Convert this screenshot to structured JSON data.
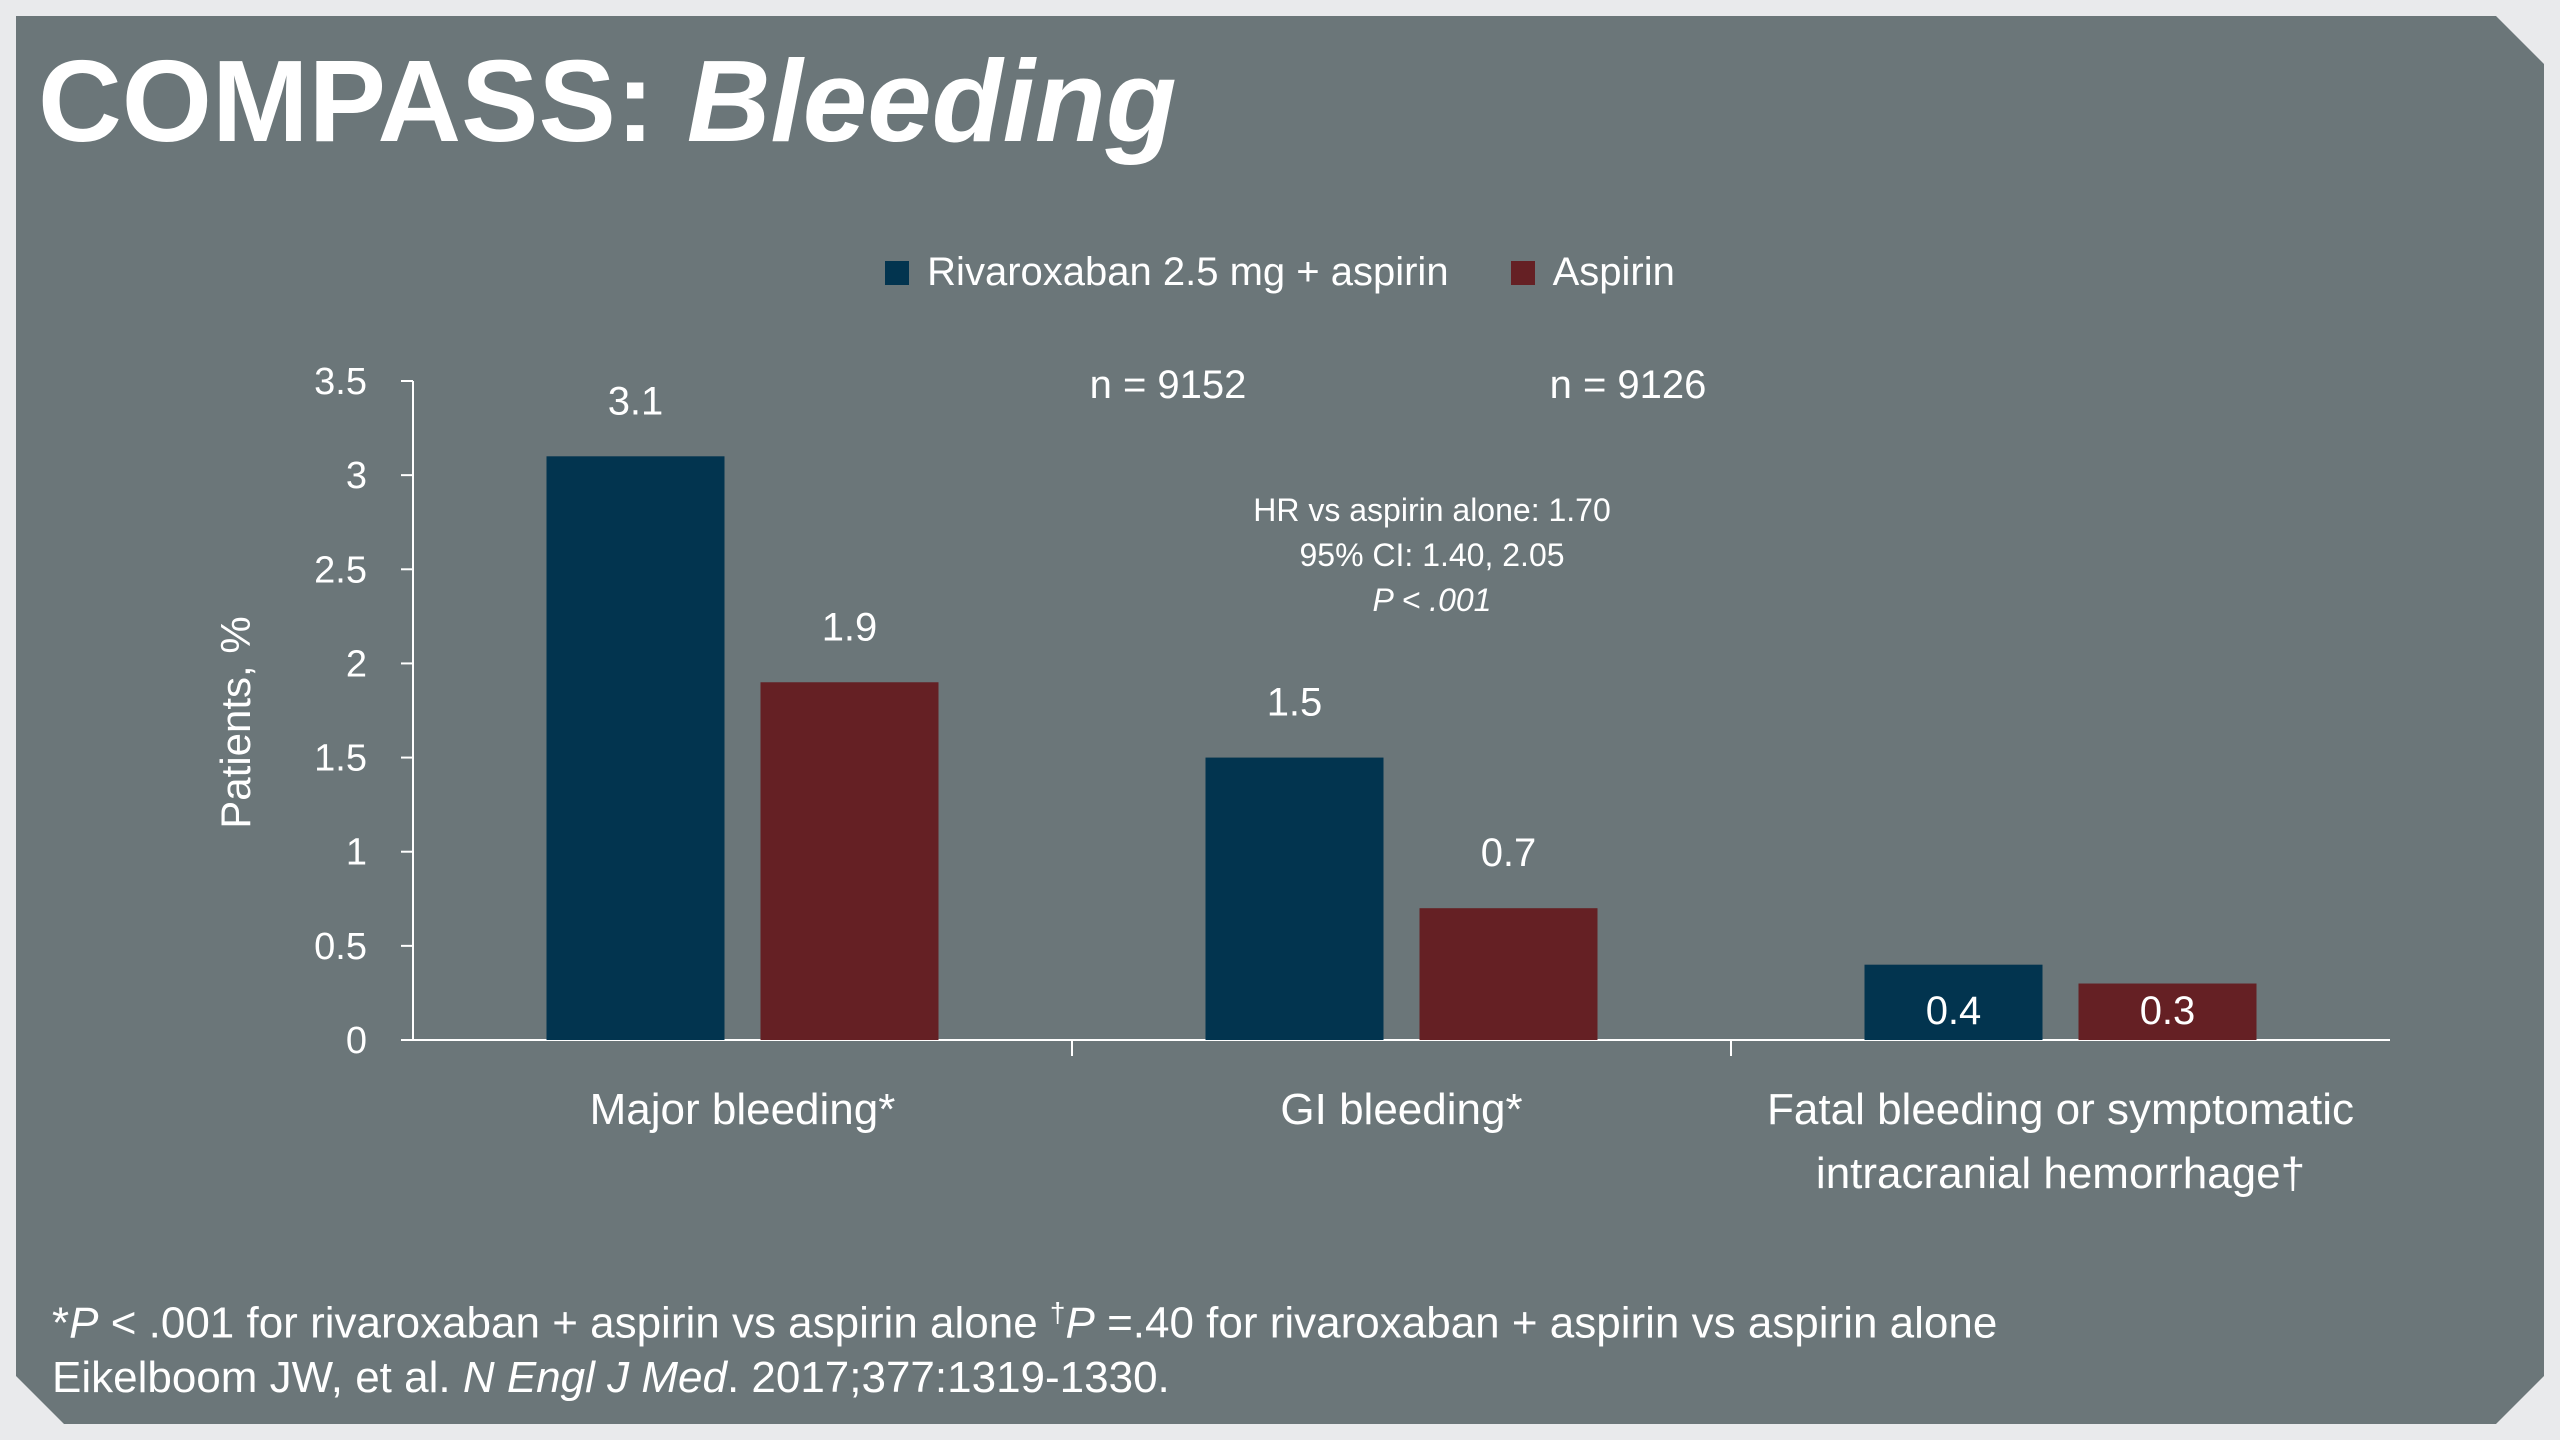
{
  "title": {
    "main": "COMPASS:",
    "italic": "Bleeding"
  },
  "colors": {
    "rivaroxaban": "#02344f",
    "aspirin": "#652024",
    "background": "#6b7679",
    "text": "#ffffff"
  },
  "legend": [
    {
      "label": "Rivaroxaban 2.5 mg + aspirin",
      "color": "#02344f"
    },
    {
      "label": "Aspirin",
      "color": "#652024"
    }
  ],
  "n_labels": [
    "n = 9152",
    "n = 9126"
  ],
  "annotation": [
    "HR vs aspirin alone: 1.70",
    "95% CI: 1.40, 2.05",
    "P < .001"
  ],
  "chart_data": {
    "type": "bar",
    "categories": [
      [
        "Major bleeding*"
      ],
      [
        "GI bleeding*"
      ],
      [
        "Fatal bleeding or symptomatic",
        "intracranial hemorrhage†"
      ]
    ],
    "series": [
      {
        "name": "Rivaroxaban 2.5 mg + aspirin",
        "values": [
          3.1,
          1.5,
          0.4
        ],
        "labels": [
          "3.1",
          "1.5",
          "0.4"
        ]
      },
      {
        "name": "Aspirin",
        "values": [
          1.9,
          0.7,
          0.3
        ],
        "labels": [
          "1.9",
          "0.7",
          "0.3"
        ]
      }
    ],
    "ylabel": "Patients, %",
    "ylim": [
      0,
      3.5
    ],
    "yticks": [
      "0",
      "0.5",
      "1",
      "1.5",
      "2",
      "2.5",
      "3",
      "3.5"
    ],
    "grid": false,
    "legend_position": "top"
  },
  "footnote": {
    "star": "*",
    "p1": "P",
    "text1": " < .001 for rivaroxaban + aspirin vs aspirin alone ",
    "dagger": "†",
    "p2": "P",
    "text2": " =.40 for rivaroxaban + aspirin vs aspirin alone",
    "citation_authors": " Eikelboom JW, et al. ",
    "citation_journal": "N Engl J Med",
    "citation_rest": ". 2017;377:1319-1330."
  }
}
